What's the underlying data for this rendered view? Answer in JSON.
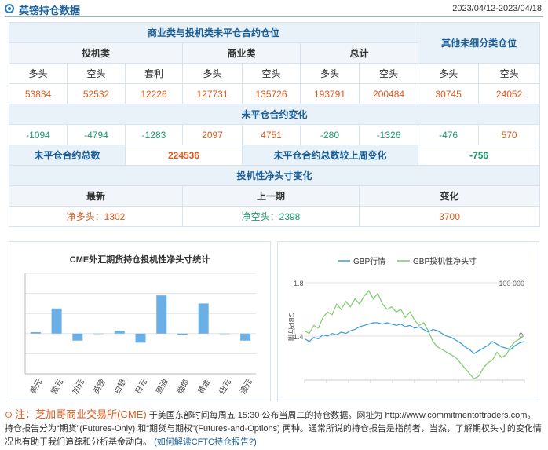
{
  "header": {
    "title": "英镑持仓数据",
    "date_range": "2023/04/12-2023/04/18"
  },
  "positions": {
    "main_title": "商业类与投机类未平仓合约仓位",
    "other_title": "其他未细分类仓位",
    "groups": {
      "spec": "投机类",
      "comm": "商业类",
      "total": "总计"
    },
    "cols": {
      "long": "多头",
      "short": "空头",
      "arb": "套利"
    },
    "values": [
      "53834",
      "52532",
      "12226",
      "127731",
      "135726",
      "193791",
      "200484",
      "30745",
      "24052"
    ],
    "change_title": "未平仓合约变化",
    "changes": [
      "-1094",
      "-4794",
      "-1283",
      "2097",
      "4751",
      "-280",
      "-1326",
      "-476",
      "570"
    ],
    "oi_total_label": "未平仓合约总数",
    "oi_total_value": "224536",
    "oi_change_label": "未平仓合约总数较上周变化",
    "oi_change_value": "-756",
    "net_title": "投机性净头寸变化",
    "net_latest_label": "最新",
    "net_prev_label": "上一期",
    "net_change_label": "变化",
    "net_latest_value": "净多头：1302",
    "net_prev_value": "净空头：2398",
    "net_change_value": "3700"
  },
  "chart_data": [
    {
      "type": "bar",
      "title": "CME外汇期货持仓投机性净头寸统计",
      "categories": [
        "美元",
        "欧元",
        "加元",
        "英镑",
        "白银",
        "日元",
        "原油",
        "瑞郎",
        "黄金",
        "纽元",
        "澳元"
      ],
      "values": [
        1.5,
        25,
        -7,
        0,
        3,
        -9,
        38,
        -1,
        30,
        0,
        -7
      ],
      "ylim": [
        -40,
        60
      ],
      "grid": true,
      "bar_color": "#6ab0e6"
    },
    {
      "type": "line",
      "legend_position": "top",
      "ylabel": "GBP行情",
      "left_axis_ticks": [
        "1.8",
        "1.4"
      ],
      "right_axis_ticks": [
        "100 000",
        "0"
      ],
      "series": [
        {
          "name": "GBP行情",
          "color": "#3a9ad9",
          "values": [
            1.38,
            1.36,
            1.39,
            1.38,
            1.41,
            1.4,
            1.42,
            1.41,
            1.43,
            1.42,
            1.44,
            1.45,
            1.47,
            1.48,
            1.49,
            1.5,
            1.5,
            1.49,
            1.5,
            1.49,
            1.48,
            1.49,
            1.47,
            1.48,
            1.46,
            1.47,
            1.45,
            1.43,
            1.45,
            1.44,
            1.42,
            1.4,
            1.39,
            1.37,
            1.35,
            1.32,
            1.3,
            1.27,
            1.29,
            1.31,
            1.33,
            1.36,
            1.34,
            1.32,
            1.31,
            1.3,
            1.33,
            1.35,
            1.36
          ]
        },
        {
          "name": "GBP投机性净头寸",
          "color": "#7cc96a",
          "values": [
            10000,
            5000,
            20000,
            15000,
            35000,
            45000,
            40000,
            60000,
            50000,
            65000,
            55000,
            70000,
            60000,
            75000,
            85000,
            70000,
            80000,
            60000,
            50000,
            55000,
            45000,
            50000,
            35000,
            45000,
            30000,
            20000,
            25000,
            10000,
            -10000,
            -20000,
            -25000,
            -30000,
            -35000,
            -40000,
            -50000,
            -60000,
            -70000,
            -80000,
            -75000,
            -60000,
            -50000,
            -45000,
            -30000,
            -40000,
            -35000,
            -20000,
            -10000,
            -5000,
            1302
          ]
        }
      ]
    }
  ],
  "note": {
    "icon": "⊙",
    "label": "注：",
    "source": "芝加哥商业交易所(CME)",
    "text1": "于美国东部时间每周五 15:30 公布当周二的持仓数据。网址为 http://www.commitmentoftraders.com。持仓报告分为“期货”(Futures-Only) 和“期货与期权”(Futures-and-Options) 两种。通常所说的持仓报告是指前者，当然，了解期权头寸的变化情况也有助于我们追踪和分析基金动向。",
    "link": "(如何解读CFTC持仓报告?)"
  }
}
